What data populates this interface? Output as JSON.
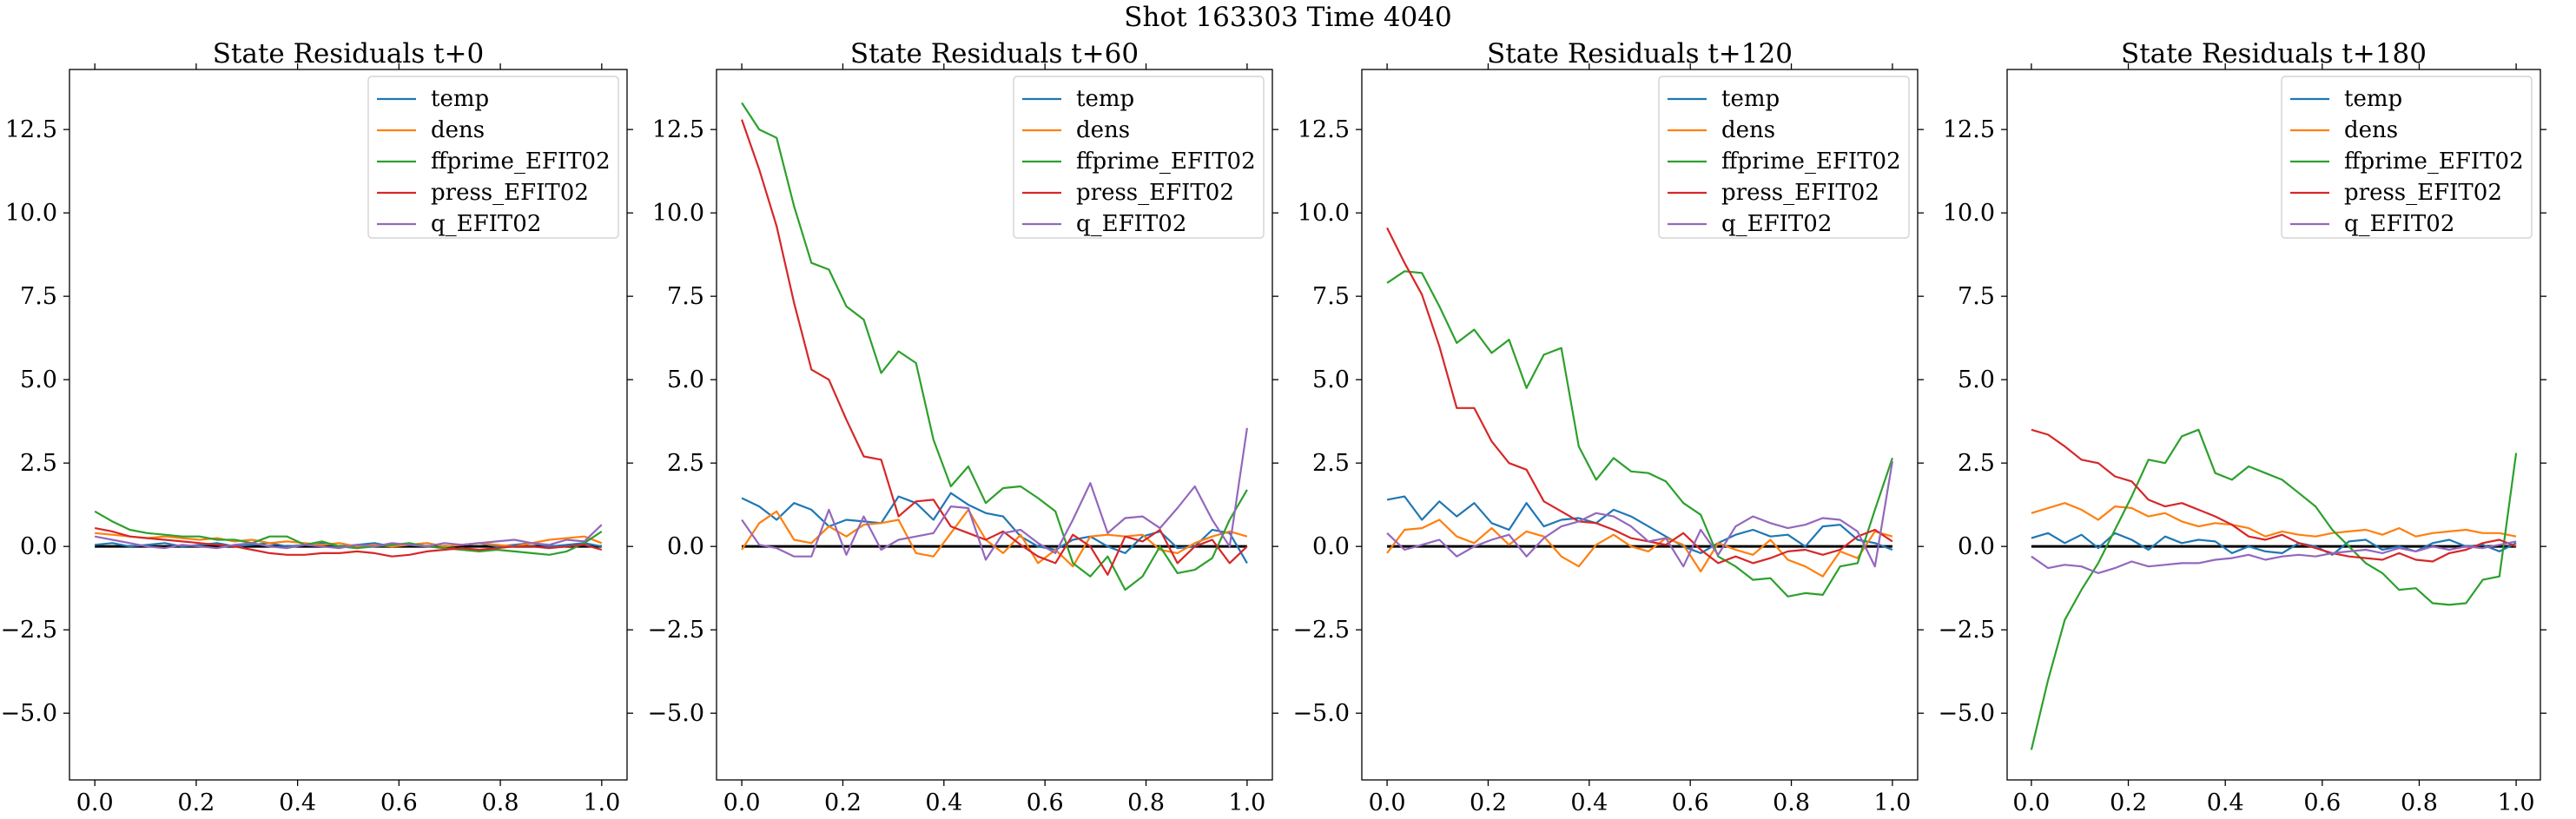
{
  "figure": {
    "suptitle": "Shot 163303   Time 4040"
  },
  "colors": {
    "temp": "#1f77b4",
    "dens": "#ff7f0e",
    "ffprime_EFIT02": "#2ca02c",
    "press_EFIT02": "#d62728",
    "q_EFIT02": "#9467bd",
    "zero_line": "#000000"
  },
  "chart_data": [
    {
      "type": "line",
      "title": "State Residuals t+0",
      "xlabel": "",
      "ylabel": "",
      "xlim": [
        -0.05,
        1.05
      ],
      "ylim": [
        -7.0,
        14.3
      ],
      "xticks": [
        0.0,
        0.2,
        0.4,
        0.6,
        0.8,
        1.0
      ],
      "xtick_labels": [
        "0.0",
        "0.2",
        "0.4",
        "0.6",
        "0.8",
        "1.0"
      ],
      "yticks": [
        -5.0,
        -2.5,
        0.0,
        2.5,
        5.0,
        7.5,
        10.0,
        12.5
      ],
      "ytick_labels": [
        "−5.0",
        "−2.5",
        "0.0",
        "2.5",
        "5.0",
        "7.5",
        "10.0",
        "12.5"
      ],
      "legend": "top-right",
      "x": [
        0.0,
        0.0345,
        0.069,
        0.1034,
        0.1379,
        0.1724,
        0.2069,
        0.2414,
        0.2759,
        0.3103,
        0.3448,
        0.3793,
        0.4138,
        0.4483,
        0.4828,
        0.5172,
        0.5517,
        0.5862,
        0.6207,
        0.6552,
        0.6897,
        0.7241,
        0.7586,
        0.7931,
        0.8276,
        0.8621,
        0.8966,
        0.931,
        0.9655,
        1.0
      ],
      "series": [
        {
          "name": "temp",
          "values": [
            0.05,
            0.1,
            0.0,
            0.05,
            0.1,
            0.0,
            0.05,
            0.1,
            0.0,
            0.05,
            0.1,
            0.0,
            0.05,
            0.1,
            0.0,
            0.05,
            0.1,
            0.0,
            0.05,
            0.1,
            0.0,
            0.05,
            0.1,
            0.0,
            0.05,
            0.1,
            0.0,
            0.05,
            0.1,
            0.0
          ]
        },
        {
          "name": "dens",
          "values": [
            0.4,
            0.35,
            0.3,
            0.25,
            0.3,
            0.25,
            0.2,
            0.25,
            0.15,
            0.2,
            0.1,
            0.15,
            0.1,
            0.05,
            0.1,
            0.0,
            0.05,
            0.0,
            0.05,
            0.1,
            0.0,
            0.05,
            0.1,
            0.05,
            0.0,
            0.1,
            0.2,
            0.25,
            0.3,
            0.1
          ]
        },
        {
          "name": "ffprime_EFIT02",
          "values": [
            1.05,
            0.75,
            0.5,
            0.4,
            0.35,
            0.3,
            0.3,
            0.2,
            0.2,
            0.1,
            0.3,
            0.3,
            0.05,
            0.15,
            0.0,
            -0.05,
            0.0,
            0.05,
            0.1,
            0.0,
            -0.05,
            -0.1,
            -0.15,
            -0.1,
            -0.15,
            -0.2,
            -0.25,
            -0.15,
            0.1,
            0.45
          ]
        },
        {
          "name": "press_EFIT02",
          "values": [
            0.55,
            0.45,
            0.3,
            0.25,
            0.2,
            0.15,
            0.1,
            0.05,
            0.0,
            -0.1,
            -0.2,
            -0.25,
            -0.25,
            -0.2,
            -0.2,
            -0.15,
            -0.2,
            -0.3,
            -0.25,
            -0.15,
            -0.1,
            -0.05,
            -0.1,
            -0.05,
            0.0,
            0.0,
            -0.05,
            0.0,
            0.05,
            -0.1
          ]
        },
        {
          "name": "q_EFIT02",
          "values": [
            0.3,
            0.2,
            0.1,
            0.0,
            -0.05,
            0.05,
            0.0,
            -0.05,
            0.05,
            0.1,
            0.0,
            -0.05,
            0.05,
            0.0,
            -0.05,
            0.05,
            0.0,
            0.1,
            0.05,
            0.0,
            0.1,
            0.05,
            0.1,
            0.15,
            0.2,
            0.1,
            0.05,
            0.2,
            0.15,
            0.65
          ]
        }
      ]
    },
    {
      "type": "line",
      "title": "State Residuals t+60",
      "xlabel": "",
      "ylabel": "",
      "xlim": [
        -0.05,
        1.05
      ],
      "ylim": [
        -7.0,
        14.3
      ],
      "xticks": [
        0.0,
        0.2,
        0.4,
        0.6,
        0.8,
        1.0
      ],
      "xtick_labels": [
        "0.0",
        "0.2",
        "0.4",
        "0.6",
        "0.8",
        "1.0"
      ],
      "yticks": [
        -5.0,
        -2.5,
        0.0,
        2.5,
        5.0,
        7.5,
        10.0,
        12.5
      ],
      "ytick_labels": [
        "−5.0",
        "−2.5",
        "0.0",
        "2.5",
        "5.0",
        "7.5",
        "10.0",
        "12.5"
      ],
      "legend": "top-right",
      "x": [
        0.0,
        0.0345,
        0.069,
        0.1034,
        0.1379,
        0.1724,
        0.2069,
        0.2414,
        0.2759,
        0.3103,
        0.3448,
        0.3793,
        0.4138,
        0.4483,
        0.4828,
        0.5172,
        0.5517,
        0.5862,
        0.6207,
        0.6552,
        0.6897,
        0.7241,
        0.7586,
        0.7931,
        0.8276,
        0.8621,
        0.8966,
        0.931,
        0.9655,
        1.0
      ],
      "series": [
        {
          "name": "temp",
          "values": [
            1.45,
            1.2,
            0.8,
            1.3,
            1.1,
            0.6,
            0.8,
            0.75,
            0.7,
            1.5,
            1.3,
            0.8,
            1.6,
            1.25,
            1.0,
            0.9,
            0.3,
            0.0,
            -0.1,
            0.2,
            0.3,
            0.0,
            -0.2,
            0.3,
            0.45,
            -0.05,
            0.0,
            0.5,
            0.4,
            -0.5
          ]
        },
        {
          "name": "dens",
          "values": [
            -0.1,
            0.7,
            1.05,
            0.2,
            0.1,
            0.6,
            0.3,
            0.65,
            0.7,
            0.8,
            -0.2,
            -0.3,
            0.4,
            1.1,
            0.2,
            -0.2,
            0.35,
            -0.5,
            -0.1,
            -0.6,
            0.3,
            0.35,
            0.3,
            0.35,
            -0.1,
            -0.2,
            0.1,
            0.3,
            0.45,
            0.3
          ]
        },
        {
          "name": "ffprime_EFIT02",
          "values": [
            13.3,
            12.5,
            12.25,
            10.2,
            8.5,
            8.3,
            7.2,
            6.8,
            5.2,
            5.85,
            5.5,
            3.2,
            1.8,
            2.4,
            1.3,
            1.75,
            1.8,
            1.45,
            1.05,
            -0.5,
            -0.9,
            -0.3,
            -1.3,
            -0.9,
            0.0,
            -0.8,
            -0.7,
            -0.35,
            0.8,
            1.7
          ]
        },
        {
          "name": "press_EFIT02",
          "values": [
            12.8,
            11.3,
            9.6,
            7.3,
            5.3,
            5.0,
            3.8,
            2.7,
            2.6,
            0.9,
            1.35,
            1.4,
            0.6,
            0.4,
            0.2,
            0.45,
            0.05,
            -0.3,
            -0.5,
            0.35,
            0.0,
            -0.85,
            0.3,
            0.15,
            0.5,
            -0.5,
            0.0,
            0.2,
            -0.5,
            0.0
          ]
        },
        {
          "name": "q_EFIT02",
          "values": [
            0.8,
            0.05,
            -0.05,
            -0.3,
            -0.3,
            1.1,
            -0.25,
            0.9,
            -0.1,
            0.2,
            0.3,
            0.4,
            1.2,
            1.15,
            -0.4,
            0.4,
            0.5,
            0.1,
            -0.2,
            0.8,
            1.9,
            0.4,
            0.85,
            0.9,
            0.55,
            1.15,
            1.8,
            0.8,
            0.0,
            3.55
          ]
        }
      ]
    },
    {
      "type": "line",
      "title": "State Residuals t+120",
      "xlabel": "",
      "ylabel": "",
      "xlim": [
        -0.05,
        1.05
      ],
      "ylim": [
        -7.0,
        14.3
      ],
      "xticks": [
        0.0,
        0.2,
        0.4,
        0.6,
        0.8,
        1.0
      ],
      "xtick_labels": [
        "0.0",
        "0.2",
        "0.4",
        "0.6",
        "0.8",
        "1.0"
      ],
      "yticks": [
        -5.0,
        -2.5,
        0.0,
        2.5,
        5.0,
        7.5,
        10.0,
        12.5
      ],
      "ytick_labels": [
        "−5.0",
        "−2.5",
        "0.0",
        "2.5",
        "5.0",
        "7.5",
        "10.0",
        "12.5"
      ],
      "legend": "top-right",
      "x": [
        0.0,
        0.0345,
        0.069,
        0.1034,
        0.1379,
        0.1724,
        0.2069,
        0.2414,
        0.2759,
        0.3103,
        0.3448,
        0.3793,
        0.4138,
        0.4483,
        0.4828,
        0.5172,
        0.5517,
        0.5862,
        0.6207,
        0.6552,
        0.6897,
        0.7241,
        0.7586,
        0.7931,
        0.8276,
        0.8621,
        0.8966,
        0.931,
        0.9655,
        1.0
      ],
      "series": [
        {
          "name": "temp",
          "values": [
            1.4,
            1.5,
            0.8,
            1.35,
            0.9,
            1.3,
            0.7,
            0.5,
            1.3,
            0.6,
            0.8,
            0.85,
            0.7,
            1.1,
            0.9,
            0.6,
            0.3,
            0.0,
            -0.2,
            0.1,
            0.35,
            0.5,
            0.3,
            0.35,
            0.0,
            0.6,
            0.65,
            0.2,
            0.1,
            -0.1
          ]
        },
        {
          "name": "dens",
          "values": [
            -0.2,
            0.5,
            0.55,
            0.8,
            0.3,
            0.1,
            0.55,
            0.05,
            0.45,
            0.3,
            -0.3,
            -0.6,
            0.05,
            0.35,
            0.0,
            -0.15,
            0.25,
            0.05,
            -0.75,
            0.1,
            -0.1,
            -0.25,
            0.2,
            -0.4,
            -0.6,
            -0.9,
            -0.15,
            -0.35,
            0.45,
            0.3
          ]
        },
        {
          "name": "ffprime_EFIT02",
          "values": [
            7.9,
            8.25,
            8.2,
            7.2,
            6.1,
            6.5,
            5.8,
            6.2,
            4.75,
            5.75,
            5.95,
            3.0,
            2.0,
            2.65,
            2.25,
            2.2,
            1.95,
            1.3,
            0.95,
            -0.3,
            -0.6,
            -1.0,
            -0.95,
            -1.5,
            -1.4,
            -1.45,
            -0.6,
            -0.5,
            1.1,
            2.65
          ]
        },
        {
          "name": "press_EFIT02",
          "values": [
            9.55,
            8.5,
            7.55,
            6.0,
            4.15,
            4.15,
            3.15,
            2.5,
            2.3,
            1.35,
            1.05,
            0.75,
            0.7,
            0.5,
            0.25,
            0.15,
            0.05,
            0.4,
            -0.1,
            -0.5,
            -0.3,
            -0.5,
            -0.35,
            -0.15,
            -0.1,
            -0.25,
            -0.1,
            0.3,
            0.5,
            0.15
          ]
        },
        {
          "name": "q_EFIT02",
          "values": [
            0.4,
            -0.1,
            0.05,
            0.2,
            -0.3,
            0.0,
            0.2,
            0.35,
            -0.3,
            0.25,
            0.6,
            0.75,
            1.0,
            0.9,
            0.6,
            0.15,
            0.25,
            -0.6,
            0.5,
            -0.25,
            0.6,
            0.9,
            0.7,
            0.55,
            0.65,
            0.85,
            0.8,
            0.45,
            -0.6,
            2.55
          ]
        }
      ]
    },
    {
      "type": "line",
      "title": "State Residuals t+180",
      "xlabel": "",
      "ylabel": "",
      "xlim": [
        -0.05,
        1.05
      ],
      "ylim": [
        -7.0,
        14.3
      ],
      "xticks": [
        0.0,
        0.2,
        0.4,
        0.6,
        0.8,
        1.0
      ],
      "xtick_labels": [
        "0.0",
        "0.2",
        "0.4",
        "0.6",
        "0.8",
        "1.0"
      ],
      "yticks": [
        -5.0,
        -2.5,
        0.0,
        2.5,
        5.0,
        7.5,
        10.0,
        12.5
      ],
      "ytick_labels": [
        "−5.0",
        "−2.5",
        "0.0",
        "2.5",
        "5.0",
        "7.5",
        "10.0",
        "12.5"
      ],
      "legend": "top-right",
      "x": [
        0.0,
        0.0345,
        0.069,
        0.1034,
        0.1379,
        0.1724,
        0.2069,
        0.2414,
        0.2759,
        0.3103,
        0.3448,
        0.3793,
        0.4138,
        0.4483,
        0.4828,
        0.5172,
        0.5517,
        0.5862,
        0.6207,
        0.6552,
        0.6897,
        0.7241,
        0.7586,
        0.7931,
        0.8276,
        0.8621,
        0.8966,
        0.931,
        0.9655,
        1.0
      ],
      "series": [
        {
          "name": "temp",
          "values": [
            0.25,
            0.4,
            0.1,
            0.35,
            -0.05,
            0.4,
            0.2,
            -0.1,
            0.3,
            0.1,
            0.2,
            0.15,
            -0.2,
            0.0,
            -0.15,
            -0.2,
            0.1,
            0.0,
            -0.25,
            0.15,
            0.2,
            -0.1,
            0.0,
            -0.15,
            0.1,
            0.2,
            0.0,
            0.05,
            -0.15,
            0.1
          ]
        },
        {
          "name": "dens",
          "values": [
            1.0,
            1.15,
            1.3,
            1.1,
            0.8,
            1.2,
            1.15,
            0.9,
            1.0,
            0.75,
            0.6,
            0.7,
            0.65,
            0.55,
            0.3,
            0.45,
            0.35,
            0.3,
            0.4,
            0.45,
            0.5,
            0.35,
            0.55,
            0.3,
            0.4,
            0.45,
            0.5,
            0.4,
            0.4,
            0.3
          ]
        },
        {
          "name": "ffprime_EFIT02",
          "values": [
            -6.1,
            -4.0,
            -2.2,
            -1.3,
            -0.5,
            0.5,
            1.5,
            2.6,
            2.5,
            3.3,
            3.5,
            2.2,
            2.0,
            2.4,
            2.2,
            2.0,
            1.6,
            1.2,
            0.5,
            0.0,
            -0.5,
            -0.8,
            -1.3,
            -1.25,
            -1.7,
            -1.75,
            -1.7,
            -1.0,
            -0.9,
            2.8
          ]
        },
        {
          "name": "press_EFIT02",
          "values": [
            3.5,
            3.35,
            3.0,
            2.6,
            2.5,
            2.1,
            1.95,
            1.4,
            1.2,
            1.3,
            1.1,
            0.9,
            0.65,
            0.3,
            0.2,
            0.35,
            0.1,
            -0.05,
            -0.2,
            -0.3,
            -0.35,
            -0.4,
            -0.2,
            -0.4,
            -0.45,
            -0.2,
            -0.1,
            0.1,
            0.2,
            0.0
          ]
        },
        {
          "name": "q_EFIT02",
          "values": [
            -0.3,
            -0.65,
            -0.55,
            -0.6,
            -0.8,
            -0.65,
            -0.45,
            -0.6,
            -0.55,
            -0.5,
            -0.5,
            -0.4,
            -0.35,
            -0.25,
            -0.4,
            -0.3,
            -0.25,
            -0.3,
            -0.2,
            -0.15,
            -0.1,
            -0.2,
            -0.05,
            -0.15,
            0.0,
            -0.1,
            0.0,
            -0.05,
            0.05,
            0.15
          ]
        }
      ]
    }
  ]
}
